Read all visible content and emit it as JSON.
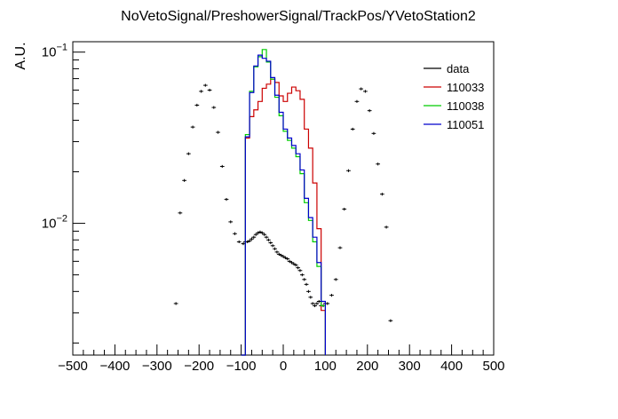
{
  "chart_data": {
    "type": "line",
    "title": "NoVetoSignal/PreshowerSignal/TrackPos/YVetoStation2",
    "xlabel": "",
    "ylabel": "A.U.",
    "xlim": [
      -500,
      500
    ],
    "ylim": [
      0.0017,
      0.115
    ],
    "yscale": "log",
    "bin_width": 10,
    "legend_position": "top-right",
    "x_ticks": [
      -500,
      -400,
      -300,
      -200,
      -100,
      0,
      100,
      200,
      300,
      400,
      500
    ],
    "x_tick_labels": [
      "−500",
      "−400",
      "−300",
      "−200",
      "−100",
      "0",
      "100",
      "200",
      "300",
      "400",
      "500"
    ],
    "y_ticks": [
      0.01,
      0.1
    ],
    "y_tick_labels": [
      {
        "base": "10",
        "exp": "−2"
      },
      {
        "base": "10",
        "exp": "−1"
      }
    ],
    "series": [
      {
        "name": "data",
        "style": "points",
        "color": "#000000",
        "x": [
          -255,
          -245,
          -235,
          -225,
          -215,
          -205,
          -195,
          -185,
          -175,
          -165,
          -155,
          -145,
          -135,
          -125,
          -115,
          -105,
          -95,
          -90,
          -85,
          -80,
          -75,
          -70,
          -65,
          -60,
          -55,
          -50,
          -45,
          -40,
          -35,
          -30,
          -25,
          -20,
          -15,
          -10,
          -5,
          0,
          5,
          10,
          15,
          20,
          25,
          30,
          35,
          40,
          45,
          50,
          55,
          60,
          65,
          70,
          75,
          80,
          85,
          90,
          95,
          100,
          105,
          115,
          125,
          135,
          145,
          155,
          165,
          175,
          185,
          195,
          205,
          215,
          225,
          235,
          245,
          255
        ],
        "y": [
          0.0034,
          0.0115,
          0.0178,
          0.0255,
          0.0365,
          0.049,
          0.059,
          0.064,
          0.06,
          0.0475,
          0.034,
          0.0215,
          0.0138,
          0.0102,
          0.0087,
          0.0078,
          0.0076,
          0.0078,
          0.0078,
          0.0079,
          0.0081,
          0.0083,
          0.0086,
          0.0088,
          0.0089,
          0.0088,
          0.0086,
          0.0083,
          0.008,
          0.0077,
          0.0074,
          0.0071,
          0.0068,
          0.0066,
          0.0065,
          0.0064,
          0.0063,
          0.0062,
          0.006,
          0.0059,
          0.0058,
          0.0057,
          0.0055,
          0.0053,
          0.005,
          0.0047,
          0.0044,
          0.004,
          0.0037,
          0.0034,
          0.0033,
          0.0034,
          0.0035,
          0.0033,
          0.0033,
          0.0034,
          0.0034,
          0.0038,
          0.0047,
          0.0072,
          0.0121,
          0.0203,
          0.0355,
          0.0515,
          0.061,
          0.059,
          0.0455,
          0.0335,
          0.0222,
          0.0148,
          0.0095,
          0.0027
        ]
      },
      {
        "name": "110033",
        "style": "step",
        "color": "#cc0000",
        "edges": [
          -100,
          -90,
          -80,
          -70,
          -60,
          -50,
          -40,
          -30,
          -20,
          -10,
          0,
          10,
          20,
          30,
          40,
          50,
          60,
          70,
          80,
          90,
          100
        ],
        "values": [
          0.0016,
          0.0315,
          0.042,
          0.046,
          0.0515,
          0.0615,
          0.065,
          0.0695,
          0.0665,
          0.0555,
          0.0515,
          0.0575,
          0.0625,
          0.0595,
          0.053,
          0.0355,
          0.0275,
          0.0172,
          0.0093,
          0.0031
        ]
      },
      {
        "name": "110038",
        "style": "step",
        "color": "#00cc00",
        "edges": [
          -100,
          -90,
          -80,
          -70,
          -60,
          -50,
          -40,
          -30,
          -20,
          -10,
          0,
          10,
          20,
          30,
          40,
          50,
          60,
          70,
          80,
          90,
          100
        ],
        "values": [
          0.0016,
          0.033,
          0.059,
          0.082,
          0.094,
          0.1035,
          0.0875,
          0.0695,
          0.0545,
          0.0425,
          0.0345,
          0.0305,
          0.0275,
          0.0245,
          0.0195,
          0.0132,
          0.0104,
          0.0078,
          0.0056,
          0.0033
        ]
      },
      {
        "name": "110051",
        "style": "step",
        "color": "#0000cc",
        "edges": [
          -100,
          -90,
          -80,
          -70,
          -60,
          -50,
          -40,
          -30,
          -20,
          -10,
          0,
          10,
          20,
          30,
          40,
          50,
          60,
          70,
          80,
          90,
          100
        ],
        "values": [
          0.0016,
          0.032,
          0.058,
          0.083,
          0.096,
          0.092,
          0.0885,
          0.071,
          0.056,
          0.0445,
          0.0355,
          0.0315,
          0.0285,
          0.0255,
          0.0205,
          0.014,
          0.0108,
          0.0083,
          0.0059,
          0.0035
        ]
      }
    ]
  }
}
